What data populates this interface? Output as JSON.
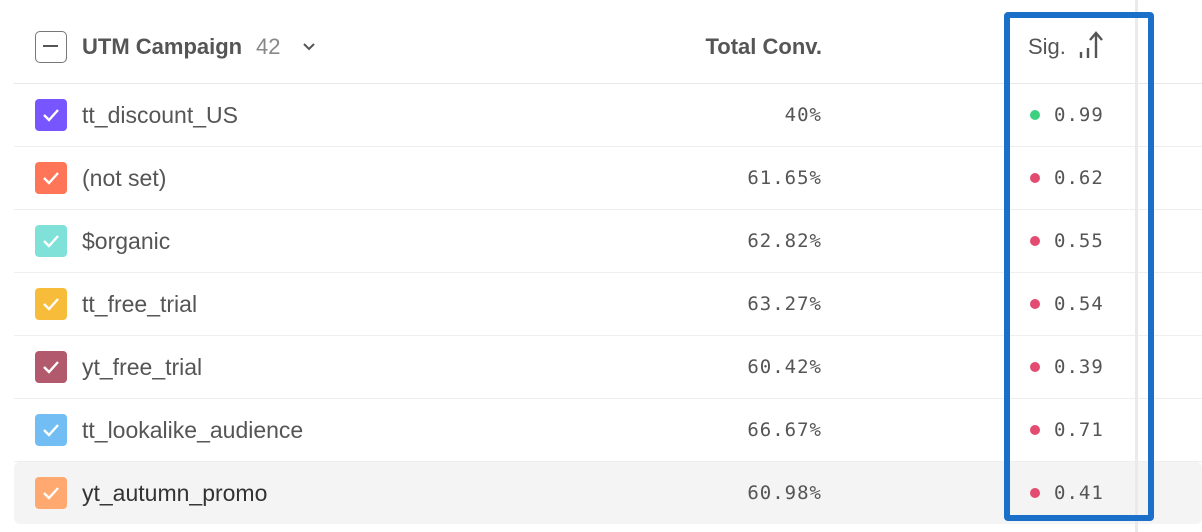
{
  "header": {
    "dimension_label": "UTM Campaign",
    "count": "42",
    "metric_label": "Total Conv.",
    "sig_label": "Sig.",
    "sort_icon": "sort-ascending-icon"
  },
  "colors": {
    "positive": "#3dd17f",
    "negative": "#e34b70",
    "annotation": "#1a6fc9"
  },
  "rows": [
    {
      "name": "tt_discount_US",
      "conv": "40%",
      "sig": "0.99",
      "color": "#7856ff",
      "status": "positive"
    },
    {
      "name": "(not set)",
      "conv": "61.65%",
      "sig": "0.62",
      "color": "#ff7557",
      "status": "negative"
    },
    {
      "name": "$organic",
      "conv": "62.82%",
      "sig": "0.55",
      "color": "#80e1d9",
      "status": "negative"
    },
    {
      "name": "tt_free_trial",
      "conv": "63.27%",
      "sig": "0.54",
      "color": "#f8bc3b",
      "status": "negative"
    },
    {
      "name": "yt_free_trial",
      "conv": "60.42%",
      "sig": "0.39",
      "color": "#b2596e",
      "status": "negative"
    },
    {
      "name": "tt_lookalike_audience",
      "conv": "66.67%",
      "sig": "0.71",
      "color": "#72bef4",
      "status": "negative"
    },
    {
      "name": "yt_autumn_promo",
      "conv": "60.98%",
      "sig": "0.41",
      "color": "#ffa86f",
      "status": "negative",
      "highlighted": true
    }
  ]
}
